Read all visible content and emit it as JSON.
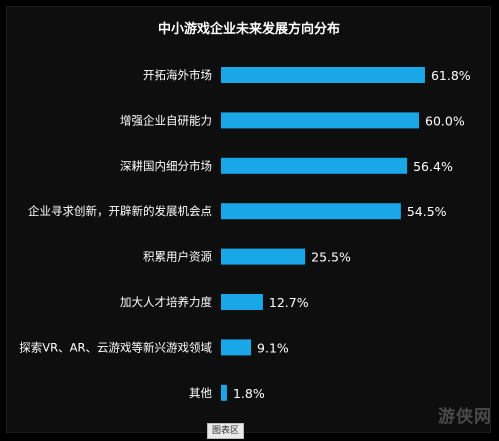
{
  "chart_data": {
    "type": "bar",
    "orientation": "horizontal",
    "title": "中小游戏企业未来发展方向分布",
    "categories": [
      "开拓海外市场",
      "增强企业自研能力",
      "深耕国内细分市场",
      "企业寻求创新，开辟新的发展机会点",
      "积累用户资源",
      "加大人才培养力度",
      "探索VR、AR、云游戏等新兴游戏领域",
      "其他"
    ],
    "values": [
      61.8,
      60.0,
      56.4,
      54.5,
      25.5,
      12.7,
      9.1,
      1.8
    ],
    "value_labels": [
      "61.8%",
      "60.0%",
      "56.4%",
      "54.5%",
      "25.5%",
      "12.7%",
      "9.1%",
      "1.8%"
    ],
    "unit": "%",
    "bar_color": "#1aa7e8",
    "grid": false,
    "legend": "none"
  },
  "caption": "图表区",
  "watermark": "游侠网"
}
